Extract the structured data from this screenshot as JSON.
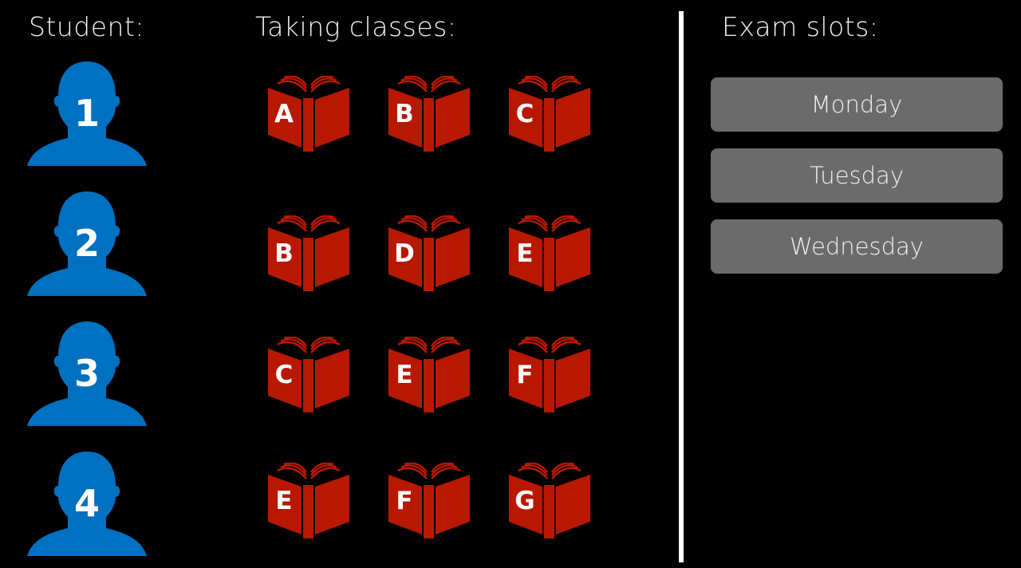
{
  "headers": {
    "student": "Student:",
    "classes": "Taking classes:",
    "slots": "Exam slots:"
  },
  "colors": {
    "student": "#0070c0",
    "book": "#b81800",
    "slot": "#6b6b6b"
  },
  "students": [
    {
      "number": "1",
      "classes": [
        "A",
        "B",
        "C"
      ]
    },
    {
      "number": "2",
      "classes": [
        "B",
        "D",
        "E"
      ]
    },
    {
      "number": "3",
      "classes": [
        "C",
        "E",
        "F"
      ]
    },
    {
      "number": "4",
      "classes": [
        "E",
        "F",
        "G"
      ]
    }
  ],
  "exam_slots": [
    "Monday",
    "Tuesday",
    "Wednesday"
  ]
}
